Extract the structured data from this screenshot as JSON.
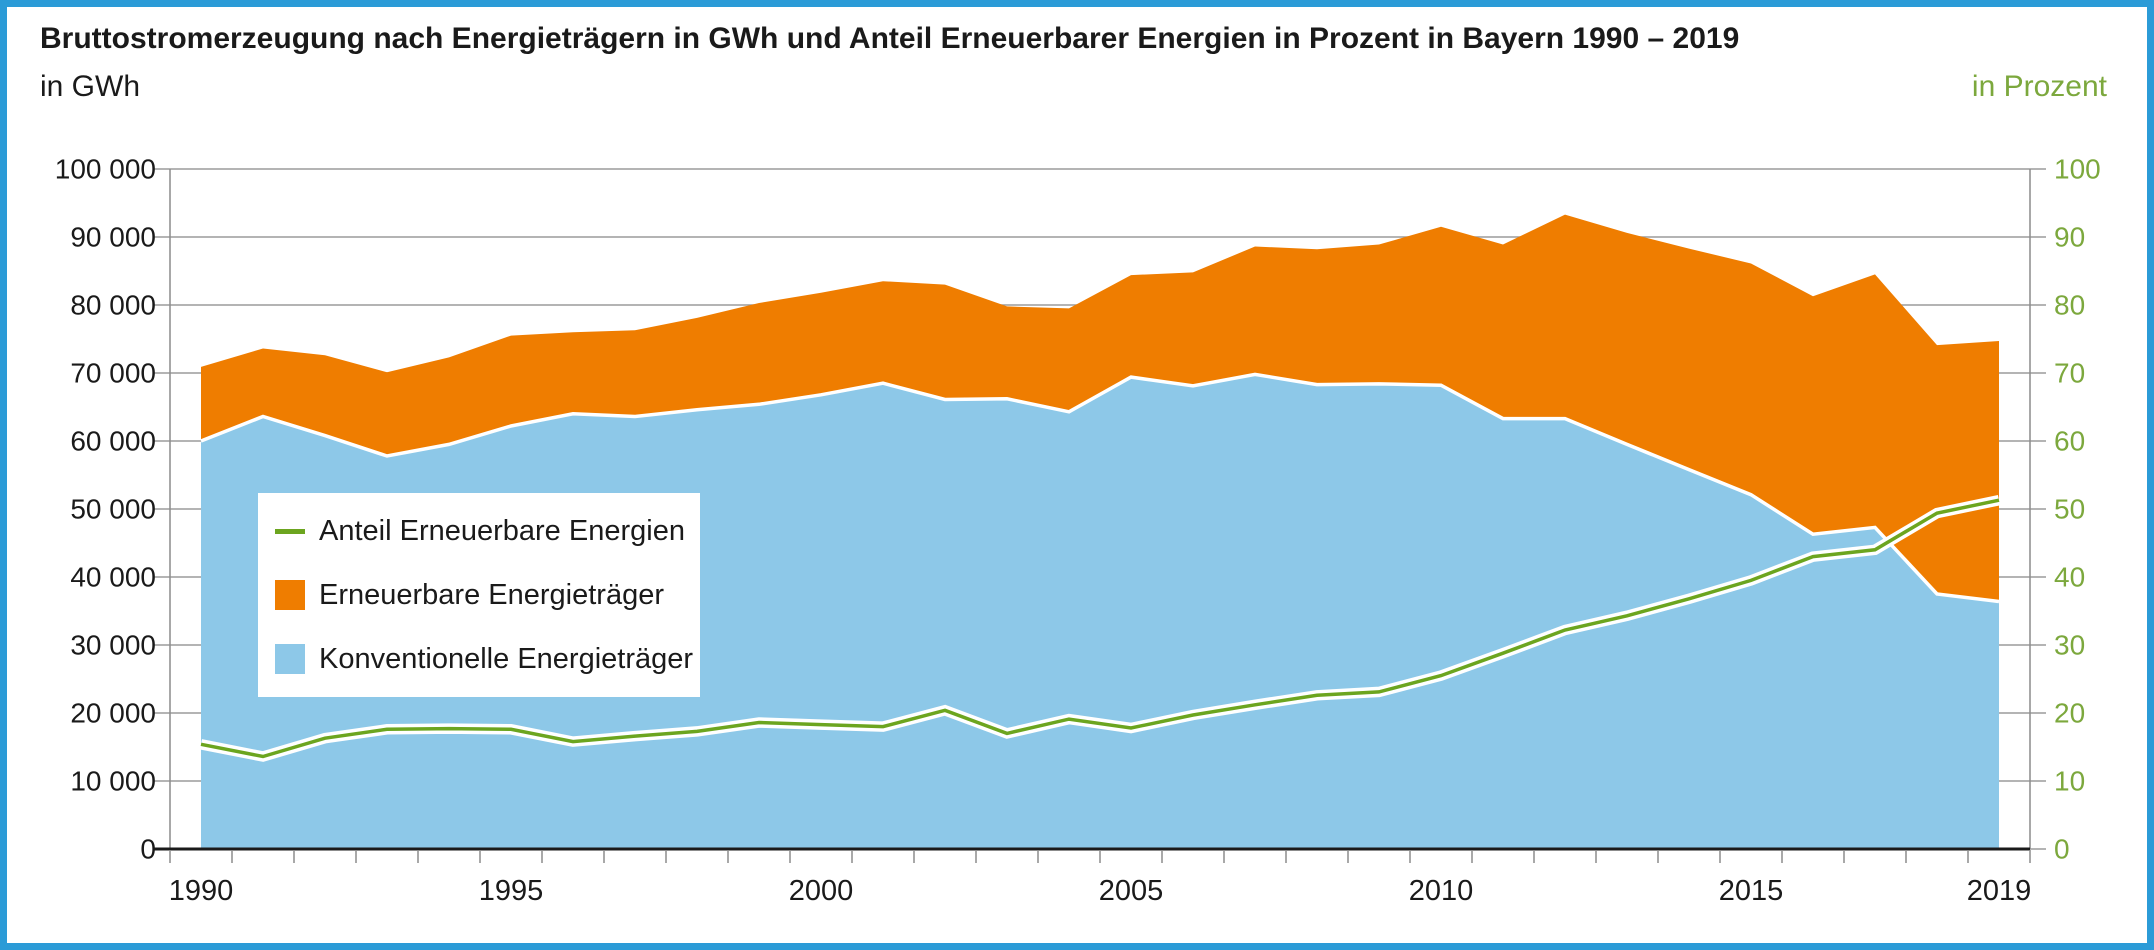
{
  "header": {
    "title": "Bruttostromerzeugung nach Energieträgern in GWh und Anteil Erneuerbarer Energien in Prozent in Bayern 1990 – 2019",
    "unit_left": "in GWh",
    "unit_right": "in Prozent"
  },
  "colors": {
    "frame_blue": "#2B9BD7",
    "grid_gray": "#9B9B9B",
    "axis_gray": "#8C8C8C",
    "axis_black": "#1a1a1a",
    "text_black": "#1a1a1a",
    "text_green": "#7CA83D"
  },
  "chart_data": {
    "type": "area",
    "stacked": true,
    "title": "Bruttostromerzeugung nach Energieträgern in GWh und Anteil Erneuerbarer Energien in Prozent in Bayern 1990 – 2019",
    "ylabel_left": "in GWh",
    "ylabel_right": "in Prozent",
    "grid": true,
    "legend_position": "inside-left",
    "ylim_left": [
      0,
      100000
    ],
    "ylim_right": [
      0,
      100
    ],
    "x": [
      1990,
      1991,
      1992,
      1993,
      1994,
      1995,
      1996,
      1997,
      1998,
      1999,
      2000,
      2001,
      2002,
      2003,
      2004,
      2005,
      2006,
      2007,
      2008,
      2009,
      2010,
      2011,
      2012,
      2013,
      2014,
      2015,
      2016,
      2017,
      2018,
      2019
    ],
    "series": [
      {
        "name": "Konventionelle Energieträger",
        "type": "area",
        "axis": "left",
        "unit": "GWh",
        "color": "#8DC8E8",
        "values": [
          60000,
          63600,
          60800,
          57800,
          59500,
          62200,
          64000,
          63600,
          64600,
          65400,
          66800,
          68500,
          66100,
          66200,
          64300,
          69400,
          68100,
          69800,
          68300,
          68400,
          68200,
          63300,
          63300,
          59500,
          55800,
          52100,
          46300,
          47300,
          37500,
          36400
        ]
      },
      {
        "name": "Erneuerbare Energieträger",
        "type": "area",
        "axis": "left",
        "unit": "GWh",
        "color": "#EF7D00",
        "values": [
          10900,
          10000,
          11800,
          12300,
          12800,
          13300,
          12000,
          12700,
          13500,
          14900,
          15000,
          15000,
          16900,
          13600,
          15200,
          15000,
          16700,
          18800,
          19900,
          20500,
          23300,
          25600,
          30000,
          31100,
          32500,
          34000,
          35000,
          37200,
          36600,
          38300
        ]
      },
      {
        "name": "Anteil Erneuerbare Energien",
        "type": "line",
        "axis": "right",
        "unit": "%",
        "color": "#6CA51F",
        "values": [
          15.4,
          13.6,
          16.3,
          17.6,
          17.7,
          17.6,
          15.8,
          16.6,
          17.3,
          18.6,
          18.3,
          18.0,
          20.4,
          17.0,
          19.1,
          17.8,
          19.7,
          21.2,
          22.6,
          23.1,
          25.5,
          28.8,
          32.2,
          34.3,
          36.8,
          39.5,
          43.0,
          44.0,
          49.4,
          51.3
        ]
      }
    ],
    "y_ticks_left": [
      "0",
      "10 000",
      "20 000",
      "30 000",
      "40 000",
      "50 000",
      "60 000",
      "70 000",
      "80 000",
      "90 000",
      "100 000"
    ],
    "y_ticks_right": [
      "0",
      "10",
      "20",
      "30",
      "40",
      "50",
      "60",
      "70",
      "80",
      "90",
      "100"
    ],
    "x_tick_labels": [
      "1990",
      "1995",
      "2000",
      "2005",
      "2010",
      "2015",
      "2019"
    ],
    "x_tick_years": [
      1990,
      1995,
      2000,
      2005,
      2010,
      2015,
      2019
    ]
  }
}
